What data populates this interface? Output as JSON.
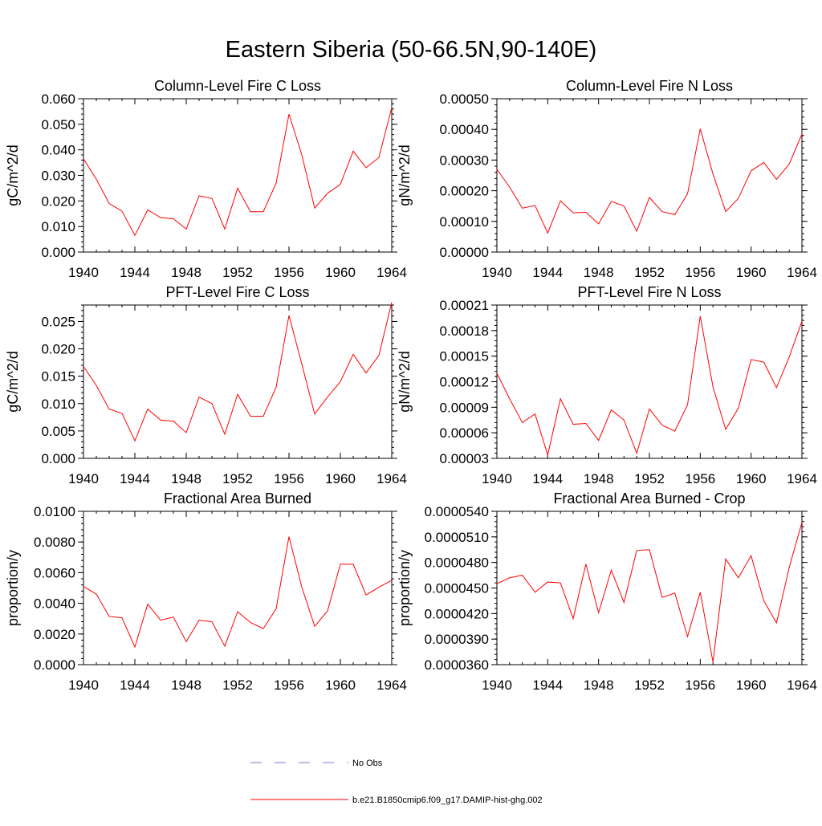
{
  "figure": {
    "title": "Eastern Siberia (50-66.5N,90-140E)"
  },
  "legend": {
    "entries": [
      {
        "label": "No Obs",
        "color": "#7777cc",
        "style": "dashed"
      },
      {
        "label": "b.e21.B1850cmip6.f09_g17.DAMIP-hist-ghg.002",
        "color": "#ff0000",
        "style": "solid"
      }
    ]
  },
  "chart_data": [
    {
      "type": "line",
      "title": "Column-Level Fire C Loss",
      "ylabel": "gC/m^2/d",
      "xlim": [
        1940,
        1964
      ],
      "ylim": [
        0,
        0.06
      ],
      "xticks": [
        "1940",
        "1944",
        "1948",
        "1952",
        "1956",
        "1960",
        "1964"
      ],
      "yticks": [
        "0.000",
        "0.010",
        "0.020",
        "0.030",
        "0.040",
        "0.050",
        "0.060"
      ],
      "x": [
        1940,
        1941,
        1942,
        1943,
        1944,
        1945,
        1946,
        1947,
        1948,
        1949,
        1950,
        1951,
        1952,
        1953,
        1954,
        1955,
        1956,
        1957,
        1958,
        1959,
        1960,
        1961,
        1962,
        1963,
        1964
      ],
      "series": [
        {
          "name": "b.e21.B1850cmip6.f09_g17.DAMIP-hist-ghg.002",
          "color": "#ff0000",
          "values": [
            0.0365,
            0.0285,
            0.019,
            0.016,
            0.0065,
            0.0165,
            0.0135,
            0.013,
            0.009,
            0.022,
            0.021,
            0.009,
            0.025,
            0.0158,
            0.0158,
            0.027,
            0.054,
            0.038,
            0.0172,
            0.023,
            0.0265,
            0.0395,
            0.033,
            0.037,
            0.0565
          ]
        }
      ]
    },
    {
      "type": "line",
      "title": "Column-Level Fire N Loss",
      "ylabel": "gN/m^2/d",
      "xlim": [
        1940,
        1964
      ],
      "ylim": [
        0,
        0.0005
      ],
      "xticks": [
        "1940",
        "1944",
        "1948",
        "1952",
        "1956",
        "1960",
        "1964"
      ],
      "yticks": [
        "0.00000",
        "0.00010",
        "0.00020",
        "0.00030",
        "0.00040",
        "0.00050"
      ],
      "x": [
        1940,
        1941,
        1942,
        1943,
        1944,
        1945,
        1946,
        1947,
        1948,
        1949,
        1950,
        1951,
        1952,
        1953,
        1954,
        1955,
        1956,
        1957,
        1958,
        1959,
        1960,
        1961,
        1962,
        1963,
        1964
      ],
      "series": [
        {
          "name": "b.e21.B1850cmip6.f09_g17.DAMIP-hist-ghg.002",
          "color": "#ff0000",
          "values": [
            0.00027,
            0.000212,
            0.000143,
            0.000152,
            6.2e-05,
            0.000167,
            0.000128,
            0.00013,
            9.2e-05,
            0.000165,
            0.00015,
            6.8e-05,
            0.000178,
            0.000132,
            0.000122,
            0.00019,
            0.000402,
            0.000255,
            0.000132,
            0.000175,
            0.000265,
            0.000292,
            0.000237,
            0.000287,
            0.000385
          ]
        }
      ]
    },
    {
      "type": "line",
      "title": "PFT-Level Fire C Loss",
      "ylabel": "gC/m^2/d",
      "xlim": [
        1940,
        1964
      ],
      "ylim": [
        0,
        0.028
      ],
      "xticks": [
        "1940",
        "1944",
        "1948",
        "1952",
        "1956",
        "1960",
        "1964"
      ],
      "yticks": [
        "0.000",
        "0.005",
        "0.010",
        "0.015",
        "0.020",
        "0.025"
      ],
      "x": [
        1940,
        1941,
        1942,
        1943,
        1944,
        1945,
        1946,
        1947,
        1948,
        1949,
        1950,
        1951,
        1952,
        1953,
        1954,
        1955,
        1956,
        1957,
        1958,
        1959,
        1960,
        1961,
        1962,
        1963,
        1964
      ],
      "series": [
        {
          "name": "b.e21.B1850cmip6.f09_g17.DAMIP-hist-ghg.002",
          "color": "#ff0000",
          "values": [
            0.0168,
            0.0133,
            0.009,
            0.0082,
            0.0032,
            0.009,
            0.007,
            0.0068,
            0.0047,
            0.0112,
            0.01,
            0.0044,
            0.0117,
            0.0077,
            0.0077,
            0.013,
            0.0261,
            0.0172,
            0.0081,
            0.0112,
            0.014,
            0.019,
            0.0156,
            0.0188,
            0.0285
          ]
        }
      ]
    },
    {
      "type": "line",
      "title": "PFT-Level Fire N Loss",
      "ylabel": "gN/m^2/d",
      "xlim": [
        1940,
        1964
      ],
      "ylim": [
        3e-05,
        0.00021
      ],
      "xticks": [
        "1940",
        "1944",
        "1948",
        "1952",
        "1956",
        "1960",
        "1964"
      ],
      "yticks": [
        "0.00003",
        "0.00006",
        "0.00009",
        "0.00012",
        "0.00015",
        "0.00018",
        "0.00021"
      ],
      "x": [
        1940,
        1941,
        1942,
        1943,
        1944,
        1945,
        1946,
        1947,
        1948,
        1949,
        1950,
        1951,
        1952,
        1953,
        1954,
        1955,
        1956,
        1957,
        1958,
        1959,
        1960,
        1961,
        1962,
        1963,
        1964
      ],
      "series": [
        {
          "name": "b.e21.B1850cmip6.f09_g17.DAMIP-hist-ghg.002",
          "color": "#ff0000",
          "values": [
            0.00013,
            0.0001,
            7.2e-05,
            8.2e-05,
            3.4e-05,
            0.0001,
            7e-05,
            7.1e-05,
            5.1e-05,
            8.7e-05,
            7.5e-05,
            3.6e-05,
            8.8e-05,
            6.9e-05,
            6.2e-05,
            9.3e-05,
            0.000197,
            0.000114,
            6.4e-05,
            8.9e-05,
            0.000146,
            0.000143,
            0.000113,
            0.000149,
            0.000191
          ]
        }
      ]
    },
    {
      "type": "line",
      "title": "Fractional Area Burned",
      "ylabel": "proportion/y",
      "xlim": [
        1940,
        1964
      ],
      "ylim": [
        0,
        0.01
      ],
      "xticks": [
        "1940",
        "1944",
        "1948",
        "1952",
        "1956",
        "1960",
        "1964"
      ],
      "yticks": [
        "0.0000",
        "0.0020",
        "0.0040",
        "0.0060",
        "0.0080",
        "0.0100"
      ],
      "x": [
        1940,
        1941,
        1942,
        1943,
        1944,
        1945,
        1946,
        1947,
        1948,
        1949,
        1950,
        1951,
        1952,
        1953,
        1954,
        1955,
        1956,
        1957,
        1958,
        1959,
        1960,
        1961,
        1962,
        1963,
        1964
      ],
      "series": [
        {
          "name": "b.e21.B1850cmip6.f09_g17.DAMIP-hist-ghg.002",
          "color": "#ff0000",
          "values": [
            0.0051,
            0.0046,
            0.00315,
            0.00305,
            0.00115,
            0.00395,
            0.0029,
            0.0031,
            0.0015,
            0.0029,
            0.0028,
            0.0012,
            0.00345,
            0.00275,
            0.00235,
            0.00365,
            0.00835,
            0.00505,
            0.0025,
            0.0035,
            0.00655,
            0.00655,
            0.00455,
            0.00505,
            0.0055
          ]
        }
      ]
    },
    {
      "type": "line",
      "title": "Fractional Area Burned - Crop",
      "ylabel": "proportion/y",
      "xlim": [
        1940,
        1964
      ],
      "ylim": [
        3.6e-05,
        5.4e-05
      ],
      "xticks": [
        "1940",
        "1944",
        "1948",
        "1952",
        "1956",
        "1960",
        "1964"
      ],
      "yticks": [
        "0.0000360",
        "0.0000390",
        "0.0000420",
        "0.0000450",
        "0.0000480",
        "0.0000510",
        "0.0000540"
      ],
      "x": [
        1940,
        1941,
        1942,
        1943,
        1944,
        1945,
        1946,
        1947,
        1948,
        1949,
        1950,
        1951,
        1952,
        1953,
        1954,
        1955,
        1956,
        1957,
        1958,
        1959,
        1960,
        1961,
        1962,
        1963,
        1964
      ],
      "series": [
        {
          "name": "b.e21.B1850cmip6.f09_g17.DAMIP-hist-ghg.002",
          "color": "#ff0000",
          "values": [
            4.55e-05,
            4.62e-05,
            4.65e-05,
            4.45e-05,
            4.57e-05,
            4.56e-05,
            4.14e-05,
            4.78e-05,
            4.21e-05,
            4.71e-05,
            4.33e-05,
            4.94e-05,
            4.95e-05,
            4.39e-05,
            4.44e-05,
            3.93e-05,
            4.45e-05,
            3.63e-05,
            4.84e-05,
            4.62e-05,
            4.88e-05,
            4.35e-05,
            4.09e-05,
            4.74e-05,
            5.27e-05
          ]
        }
      ]
    }
  ]
}
